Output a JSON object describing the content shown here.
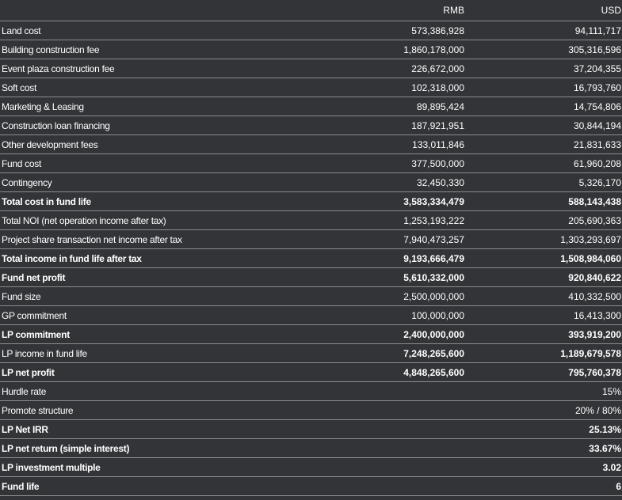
{
  "header": {
    "label": "",
    "rmb": "RMB",
    "usd": "USD"
  },
  "rows": [
    {
      "label": "Land cost",
      "rmb": "573,386,928",
      "usd": "94,111,717",
      "label_bold": false,
      "value_bold": false
    },
    {
      "label": "Building construction fee",
      "rmb": "1,860,178,000",
      "usd": "305,316,596",
      "label_bold": false,
      "value_bold": false
    },
    {
      "label": "Event plaza construction fee",
      "rmb": "226,672,000",
      "usd": "37,204,355",
      "label_bold": false,
      "value_bold": false
    },
    {
      "label": "Soft cost",
      "rmb": "102,318,000",
      "usd": "16,793,760",
      "label_bold": false,
      "value_bold": false
    },
    {
      "label": "Marketing & Leasing",
      "rmb": "89,895,424",
      "usd": "14,754,806",
      "label_bold": false,
      "value_bold": false
    },
    {
      "label": "Construction loan financing",
      "rmb": "187,921,951",
      "usd": "30,844,194",
      "label_bold": false,
      "value_bold": false
    },
    {
      "label": "Other development fees",
      "rmb": "133,011,846",
      "usd": "21,831,633",
      "label_bold": false,
      "value_bold": false
    },
    {
      "label": "Fund cost",
      "rmb": "377,500,000",
      "usd": "61,960,208",
      "label_bold": false,
      "value_bold": false
    },
    {
      "label": "Contingency",
      "rmb": "32,450,330",
      "usd": "5,326,170",
      "label_bold": false,
      "value_bold": false
    },
    {
      "label": "Total cost in fund life",
      "rmb": "3,583,334,479",
      "usd": "588,143,438",
      "label_bold": true,
      "value_bold": true
    },
    {
      "label": "Total NOI  (net operation income after tax)",
      "rmb": "1,253,193,222",
      "usd": "205,690,363",
      "label_bold": false,
      "value_bold": false
    },
    {
      "label": "Project share transaction net income after tax",
      "rmb": "7,940,473,257",
      "usd": "1,303,293,697",
      "label_bold": false,
      "value_bold": false
    },
    {
      "label": "Total income in fund  life after tax",
      "rmb": "9,193,666,479",
      "usd": "1,508,984,060",
      "label_bold": true,
      "value_bold": true
    },
    {
      "label": "Fund net profit",
      "rmb": "5,610,332,000",
      "usd": "920,840,622",
      "label_bold": true,
      "value_bold": true
    },
    {
      "label": "Fund size",
      "rmb": "2,500,000,000",
      "usd": "410,332,500",
      "label_bold": false,
      "value_bold": false
    },
    {
      "label": "GP commitment",
      "rmb": "100,000,000",
      "usd": "16,413,300",
      "label_bold": false,
      "value_bold": false
    },
    {
      "label": "LP commitment",
      "rmb": "2,400,000,000",
      "usd": "393,919,200",
      "label_bold": true,
      "value_bold": true
    },
    {
      "label": "LP  income in fund life",
      "rmb": "7,248,265,600",
      "usd": "1,189,679,578",
      "label_bold": false,
      "value_bold": true
    },
    {
      "label": "LP net profit",
      "rmb": "4,848,265,600",
      "usd": "795,760,378",
      "label_bold": true,
      "value_bold": true
    },
    {
      "label": "Hurdle rate",
      "rmb": "",
      "usd": "15%",
      "label_bold": false,
      "value_bold": false
    },
    {
      "label": "Promote structure",
      "rmb": "",
      "usd": "20% / 80%",
      "label_bold": false,
      "value_bold": false
    },
    {
      "label": "LP  Net IRR",
      "rmb": "",
      "usd": "25.13%",
      "label_bold": true,
      "value_bold": true
    },
    {
      "label": "LP net return (simple interest)",
      "rmb": "",
      "usd": "33.67%",
      "label_bold": true,
      "value_bold": true
    },
    {
      "label": "LP investment multiple",
      "rmb": "",
      "usd": "3.02",
      "label_bold": true,
      "value_bold": true
    },
    {
      "label": "Fund life",
      "rmb": "",
      "usd": "6",
      "label_bold": true,
      "value_bold": true
    }
  ]
}
